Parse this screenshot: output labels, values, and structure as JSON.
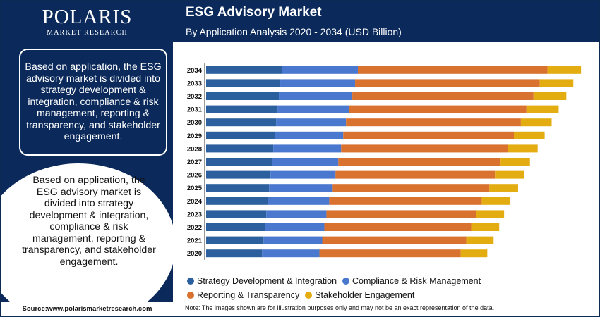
{
  "brand": {
    "name": "POLARIS",
    "subtitle": "MARKET RESEARCH"
  },
  "left_panel": {
    "description": "Based on application, the ESG advisory market is divided into strategy development & integration, compliance & risk management, reporting & transparency, and stakeholder engagement.",
    "circle_description": "Based on application, the ESG advisory market is divided into strategy development & integration, compliance & risk management, reporting & transparency, and stakeholder engagement."
  },
  "source": "Source:www.polarismarketresearch.com",
  "note": "Note: The images shown are for illustration purposes only and may not be an exact representation of the data.",
  "colors": {
    "navy": "#0b2a5b",
    "strategy": "#2b5f9e",
    "compliance": "#4a78cf",
    "reporting": "#d9712f",
    "stakeholder": "#e3ad12"
  },
  "chart_data": {
    "type": "bar",
    "orientation": "horizontal",
    "stacked": true,
    "title": "ESG Advisory Market",
    "subtitle": "By Application Analysis 2020 - 2034 (USD Billion)",
    "xlabel": "",
    "ylabel": "",
    "categories": [
      "2020",
      "2021",
      "2022",
      "2023",
      "2024",
      "2025",
      "2026",
      "2027",
      "2028",
      "2029",
      "2030",
      "2031",
      "2032",
      "2033",
      "2034"
    ],
    "series": [
      {
        "name": "Strategy Development & Integration",
        "color_key": "strategy",
        "values": [
          8.0,
          8.2,
          8.4,
          8.6,
          8.8,
          9.0,
          9.2,
          9.4,
          9.6,
          9.8,
          10.0,
          10.2,
          10.4,
          10.6,
          10.8
        ]
      },
      {
        "name": "Compliance & Risk Management",
        "color_key": "compliance",
        "values": [
          8.2,
          8.4,
          8.5,
          8.6,
          8.8,
          9.1,
          9.3,
          9.5,
          9.7,
          9.8,
          10.0,
          10.2,
          10.5,
          10.7,
          10.9
        ]
      },
      {
        "name": "Reporting & Transparency",
        "color_key": "reporting",
        "values": [
          20.2,
          20.6,
          21.0,
          21.4,
          21.8,
          22.4,
          22.8,
          23.2,
          23.8,
          24.4,
          25.0,
          25.4,
          25.9,
          26.4,
          27.1
        ]
      },
      {
        "name": "Stakeholder Engagement",
        "color_key": "stakeholder",
        "values": [
          3.8,
          3.9,
          4.0,
          4.0,
          4.1,
          4.1,
          4.2,
          4.2,
          4.3,
          4.4,
          4.4,
          4.6,
          4.7,
          4.8,
          4.8
        ]
      }
    ],
    "xlim": [
      0,
      55
    ],
    "grid": false,
    "legend_position": "bottom"
  }
}
